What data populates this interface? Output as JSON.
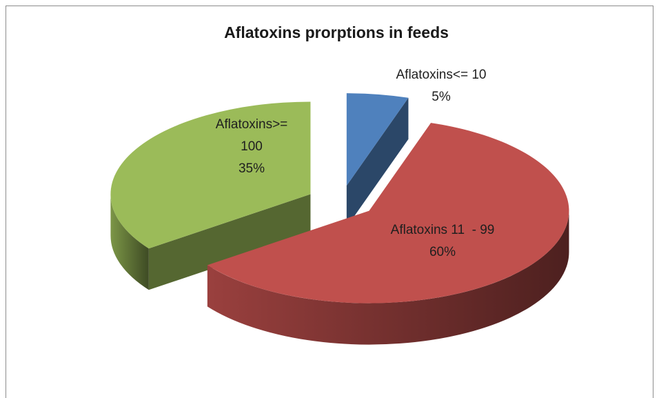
{
  "chart_data": {
    "type": "pie",
    "title": "Aflatoxins prorptions in feeds",
    "categories": [
      "Aflatoxins<= 10",
      "Aflatoxins 11  - 99",
      "Aflatoxins>= 100"
    ],
    "values": [
      5,
      60,
      35
    ],
    "value_labels": [
      "5%",
      "60%",
      "35%"
    ],
    "colors": [
      "#4f81bd",
      "#c0504d",
      "#9bbb59"
    ]
  }
}
